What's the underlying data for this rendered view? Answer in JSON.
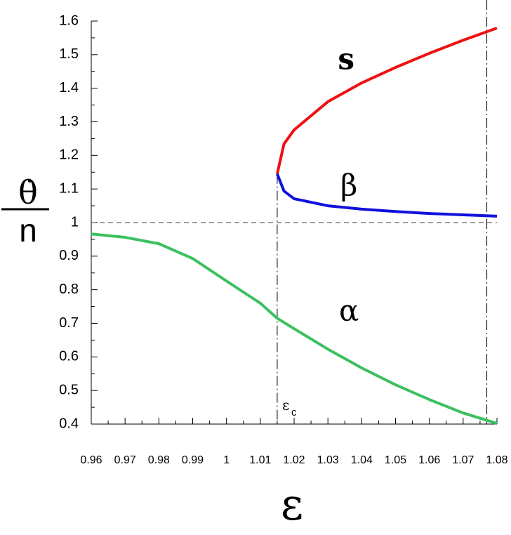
{
  "chart_data": {
    "type": "line",
    "ylabel": {
      "numerator": "θ̇",
      "denominator": "n"
    },
    "xlabel": "ε",
    "xlim": [
      0.96,
      1.08
    ],
    "ylim": [
      0.4,
      1.6
    ],
    "xticks": [
      0.96,
      0.97,
      0.98,
      0.99,
      1,
      1.01,
      1.02,
      1.03,
      1.04,
      1.05,
      1.06,
      1.07,
      1.08
    ],
    "yticks": [
      0.4,
      0.5,
      0.6,
      0.7,
      0.8,
      0.9,
      1,
      1.1,
      1.2,
      1.3,
      1.4,
      1.5,
      1.6
    ],
    "hline": 1,
    "vlines": [
      1.015,
      1.077
    ],
    "annotation": {
      "text": "ε",
      "sub": "c"
    },
    "series": [
      {
        "name": "s",
        "color": "#ee1111",
        "x": [
          1.015,
          1.017,
          1.02,
          1.03,
          1.04,
          1.05,
          1.06,
          1.07,
          1.08
        ],
        "values": [
          1.145,
          1.234,
          1.276,
          1.36,
          1.416,
          1.462,
          1.504,
          1.543,
          1.579
        ]
      },
      {
        "name": "β",
        "color": "#1111dd",
        "x": [
          1.015,
          1.017,
          1.02,
          1.03,
          1.04,
          1.05,
          1.06,
          1.07,
          1.08
        ],
        "values": [
          1.145,
          1.094,
          1.071,
          1.05,
          1.04,
          1.033,
          1.027,
          1.023,
          1.019
        ]
      },
      {
        "name": "α",
        "color": "#3cc060",
        "x": [
          0.96,
          0.97,
          0.98,
          0.99,
          1,
          1.01,
          1.015,
          1.02,
          1.03,
          1.04,
          1.05,
          1.06,
          1.07,
          1.08
        ],
        "values": [
          0.966,
          0.956,
          0.937,
          0.893,
          0.826,
          0.76,
          0.715,
          0.684,
          0.623,
          0.567,
          0.517,
          0.473,
          0.433,
          0.402
        ]
      }
    ]
  }
}
